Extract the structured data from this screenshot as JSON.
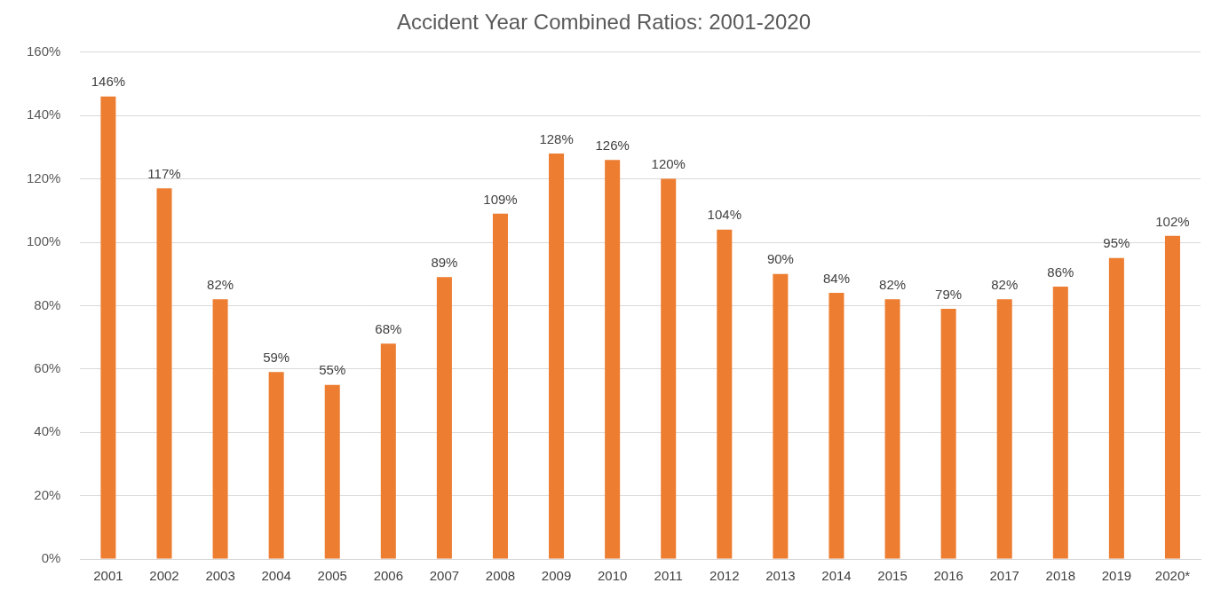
{
  "chart_data": {
    "type": "bar",
    "title": "Accident Year Combined Ratios: 2001-2020",
    "categories": [
      "2001",
      "2002",
      "2003",
      "2004",
      "2005",
      "2006",
      "2007",
      "2008",
      "2009",
      "2010",
      "2011",
      "2012",
      "2013",
      "2014",
      "2015",
      "2016",
      "2017",
      "2018",
      "2019",
      "2020*"
    ],
    "values": [
      146,
      117,
      82,
      59,
      55,
      68,
      89,
      109,
      128,
      126,
      120,
      104,
      90,
      84,
      82,
      79,
      82,
      86,
      95,
      102
    ],
    "value_labels": [
      "146%",
      "117%",
      "82%",
      "59%",
      "55%",
      "68%",
      "89%",
      "109%",
      "128%",
      "126%",
      "120%",
      "104%",
      "90%",
      "84%",
      "82%",
      "79%",
      "82%",
      "86%",
      "95%",
      "102%"
    ],
    "color": "#ed7d31",
    "ylim": [
      0,
      160
    ],
    "yticks": [
      {
        "value": 0,
        "label": "0%"
      },
      {
        "value": 20,
        "label": "20%"
      },
      {
        "value": 40,
        "label": "40%"
      },
      {
        "value": 60,
        "label": "60%"
      },
      {
        "value": 80,
        "label": "80%"
      },
      {
        "value": 100,
        "label": "100%"
      },
      {
        "value": 120,
        "label": "120%"
      },
      {
        "value": 140,
        "label": "140%"
      },
      {
        "value": 160,
        "label": "160%"
      }
    ],
    "grid": true,
    "data_labels": true
  }
}
